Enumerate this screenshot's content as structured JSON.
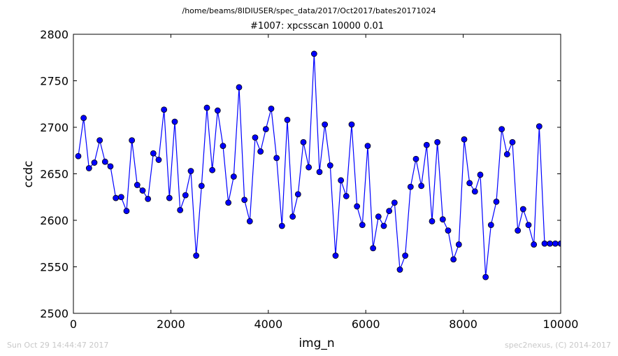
{
  "page": {
    "suptitle": "/home/beams/8IDIUSER/spec_data/2017/Oct2017/bates20171024",
    "footer_left": "Sun Oct 29 14:44:47 2017",
    "footer_right": "spec2nexus, (C) 2014-2017"
  },
  "colors": {
    "line": "#0000ff",
    "marker_fill": "#0000ff",
    "marker_edge": "#000000",
    "axes": "#000000",
    "footer_text": "#c8c8c8"
  },
  "chart_data": {
    "type": "line",
    "title": "#1007: xpcsscan 10000 0.01",
    "xlabel": "img_n",
    "ylabel": "ccdc",
    "xlim": [
      0,
      10000
    ],
    "ylim": [
      2500,
      2800
    ],
    "xticks": [
      0,
      2000,
      4000,
      6000,
      8000,
      10000
    ],
    "yticks": [
      2500,
      2550,
      2600,
      2650,
      2700,
      2750,
      2800
    ],
    "grid": false,
    "legend": "none",
    "series": [
      {
        "marker": "circle",
        "x": [
          100,
          210,
          320,
          430,
          540,
          650,
          760,
          870,
          980,
          1090,
          1200,
          1310,
          1420,
          1530,
          1640,
          1750,
          1860,
          1970,
          2080,
          2190,
          2300,
          2410,
          2520,
          2630,
          2740,
          2850,
          2960,
          3070,
          3180,
          3290,
          3400,
          3510,
          3620,
          3730,
          3840,
          3950,
          4060,
          4170,
          4280,
          4390,
          4500,
          4610,
          4720,
          4830,
          4940,
          5050,
          5160,
          5270,
          5380,
          5490,
          5600,
          5710,
          5820,
          5930,
          6040,
          6150,
          6260,
          6370,
          6480,
          6590,
          6700,
          6810,
          6920,
          7030,
          7140,
          7250,
          7360,
          7470,
          7580,
          7690,
          7800,
          7910,
          8020,
          8130,
          8240,
          8350,
          8460,
          8570,
          8680,
          8790,
          8900,
          9010,
          9120,
          9230,
          9340,
          9450,
          9560,
          9670,
          9780,
          9890,
          10000
        ],
        "y": [
          2669,
          2710,
          2656,
          2662,
          2686,
          2663,
          2658,
          2624,
          2625,
          2610,
          2686,
          2638,
          2632,
          2623,
          2672,
          2665,
          2719,
          2624,
          2706,
          2611,
          2627,
          2653,
          2562,
          2637,
          2721,
          2654,
          2718,
          2680,
          2619,
          2647,
          2743,
          2622,
          2599,
          2689,
          2674,
          2698,
          2720,
          2667,
          2594,
          2708,
          2604,
          2628,
          2684,
          2657,
          2779,
          2652,
          2703,
          2659,
          2562,
          2643,
          2626,
          2703,
          2615,
          2595,
          2680,
          2570,
          2604,
          2594,
          2610,
          2619,
          2547,
          2562,
          2636,
          2666,
          2637,
          2681,
          2599,
          2684,
          2601,
          2589,
          2558,
          2574,
          2687,
          2640,
          2631,
          2649,
          2539,
          2595,
          2620,
          2698,
          2671,
          2684,
          2589,
          2612,
          2595,
          2574,
          2701,
          2575,
          2575,
          2575,
          2575
        ]
      }
    ]
  }
}
